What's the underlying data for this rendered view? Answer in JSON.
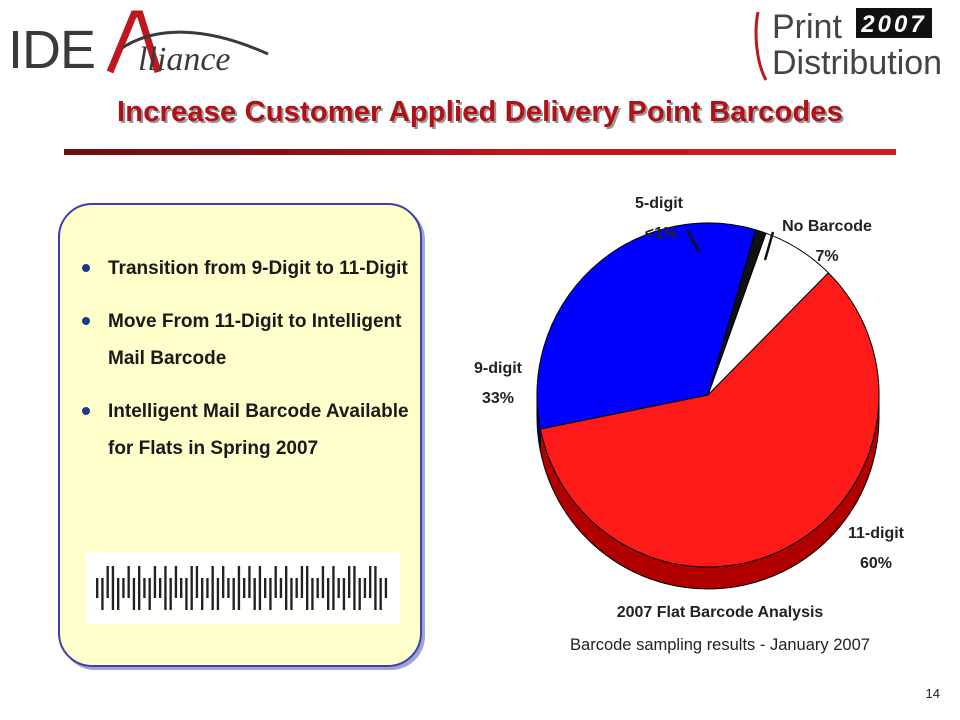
{
  "header": {
    "logo_left": "IDEAlliance",
    "logo_right_line1": "Print",
    "logo_right_year": "2007",
    "logo_right_line2": "Distribution"
  },
  "title": "Increase Customer Applied Delivery Point Barcodes",
  "bullets": [
    {
      "text": "Transition from 9-Digit to 11-Digit"
    },
    {
      "text": "Move From 11-Digit to Intelligent Mail Barcode"
    },
    {
      "text": "Intelligent Mail Barcode Available for Flats in Spring 2007"
    }
  ],
  "colors": {
    "title": "#b01016",
    "panel_fill": "#ffffcc",
    "panel_border": "#3a42a8",
    "slice_11digit": "#ff1a1a",
    "slice_9digit": "#0000ff",
    "slice_5digit": "#111111",
    "slice_nobarcode": "#ffffff"
  },
  "chart_data": {
    "type": "pie",
    "title": "2007 Flat Barcode Analysis",
    "subtitle": "Barcode sampling results - January 2007",
    "slices": [
      {
        "label": "No Barcode",
        "value": 7,
        "display": "7%"
      },
      {
        "label": "11-digit",
        "value": 60,
        "display": "60%"
      },
      {
        "label": "9-digit",
        "value": 33,
        "display": "33%"
      },
      {
        "label": "5-digit",
        "value": 1,
        "display": "<1%"
      }
    ]
  },
  "page_number": "14"
}
